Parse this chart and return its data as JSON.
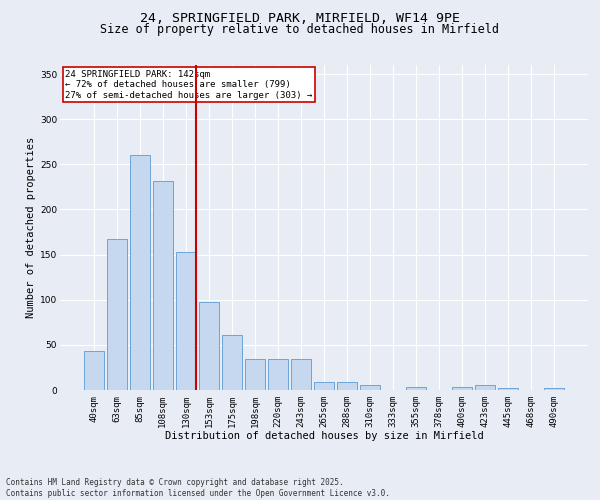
{
  "title_line1": "24, SPRINGFIELD PARK, MIRFIELD, WF14 9PE",
  "title_line2": "Size of property relative to detached houses in Mirfield",
  "bar_values": [
    43,
    167,
    260,
    232,
    153,
    97,
    61,
    34,
    34,
    34,
    9,
    9,
    5,
    0,
    3,
    0,
    3,
    5,
    2,
    0,
    2
  ],
  "bar_labels": [
    "40sqm",
    "63sqm",
    "85sqm",
    "108sqm",
    "130sqm",
    "153sqm",
    "175sqm",
    "198sqm",
    "220sqm",
    "243sqm",
    "265sqm",
    "288sqm",
    "310sqm",
    "333sqm",
    "355sqm",
    "378sqm",
    "400sqm",
    "423sqm",
    "445sqm",
    "468sqm",
    "490sqm"
  ],
  "xlabel": "Distribution of detached houses by size in Mirfield",
  "ylabel": "Number of detached properties",
  "ylim": [
    0,
    360
  ],
  "yticks": [
    0,
    50,
    100,
    150,
    200,
    250,
    300,
    350
  ],
  "bar_color": "#c5d8f0",
  "bar_edge_color": "#5b9bd5",
  "vline_color": "#cc0000",
  "annotation_title": "24 SPRINGFIELD PARK: 142sqm",
  "annotation_line2": "← 72% of detached houses are smaller (799)",
  "annotation_line3": "27% of semi-detached houses are larger (303) →",
  "annotation_box_color": "#cc0000",
  "annotation_bg": "#ffffff",
  "footer_line1": "Contains HM Land Registry data © Crown copyright and database right 2025.",
  "footer_line2": "Contains public sector information licensed under the Open Government Licence v3.0.",
  "bg_color": "#e8edf5",
  "plot_bg_color": "#e8edf5",
  "grid_color": "#ffffff",
  "title_fontsize": 9.5,
  "subtitle_fontsize": 8.5,
  "axis_label_fontsize": 7.5,
  "tick_fontsize": 6.5,
  "annotation_fontsize": 6.5,
  "footer_fontsize": 5.5
}
